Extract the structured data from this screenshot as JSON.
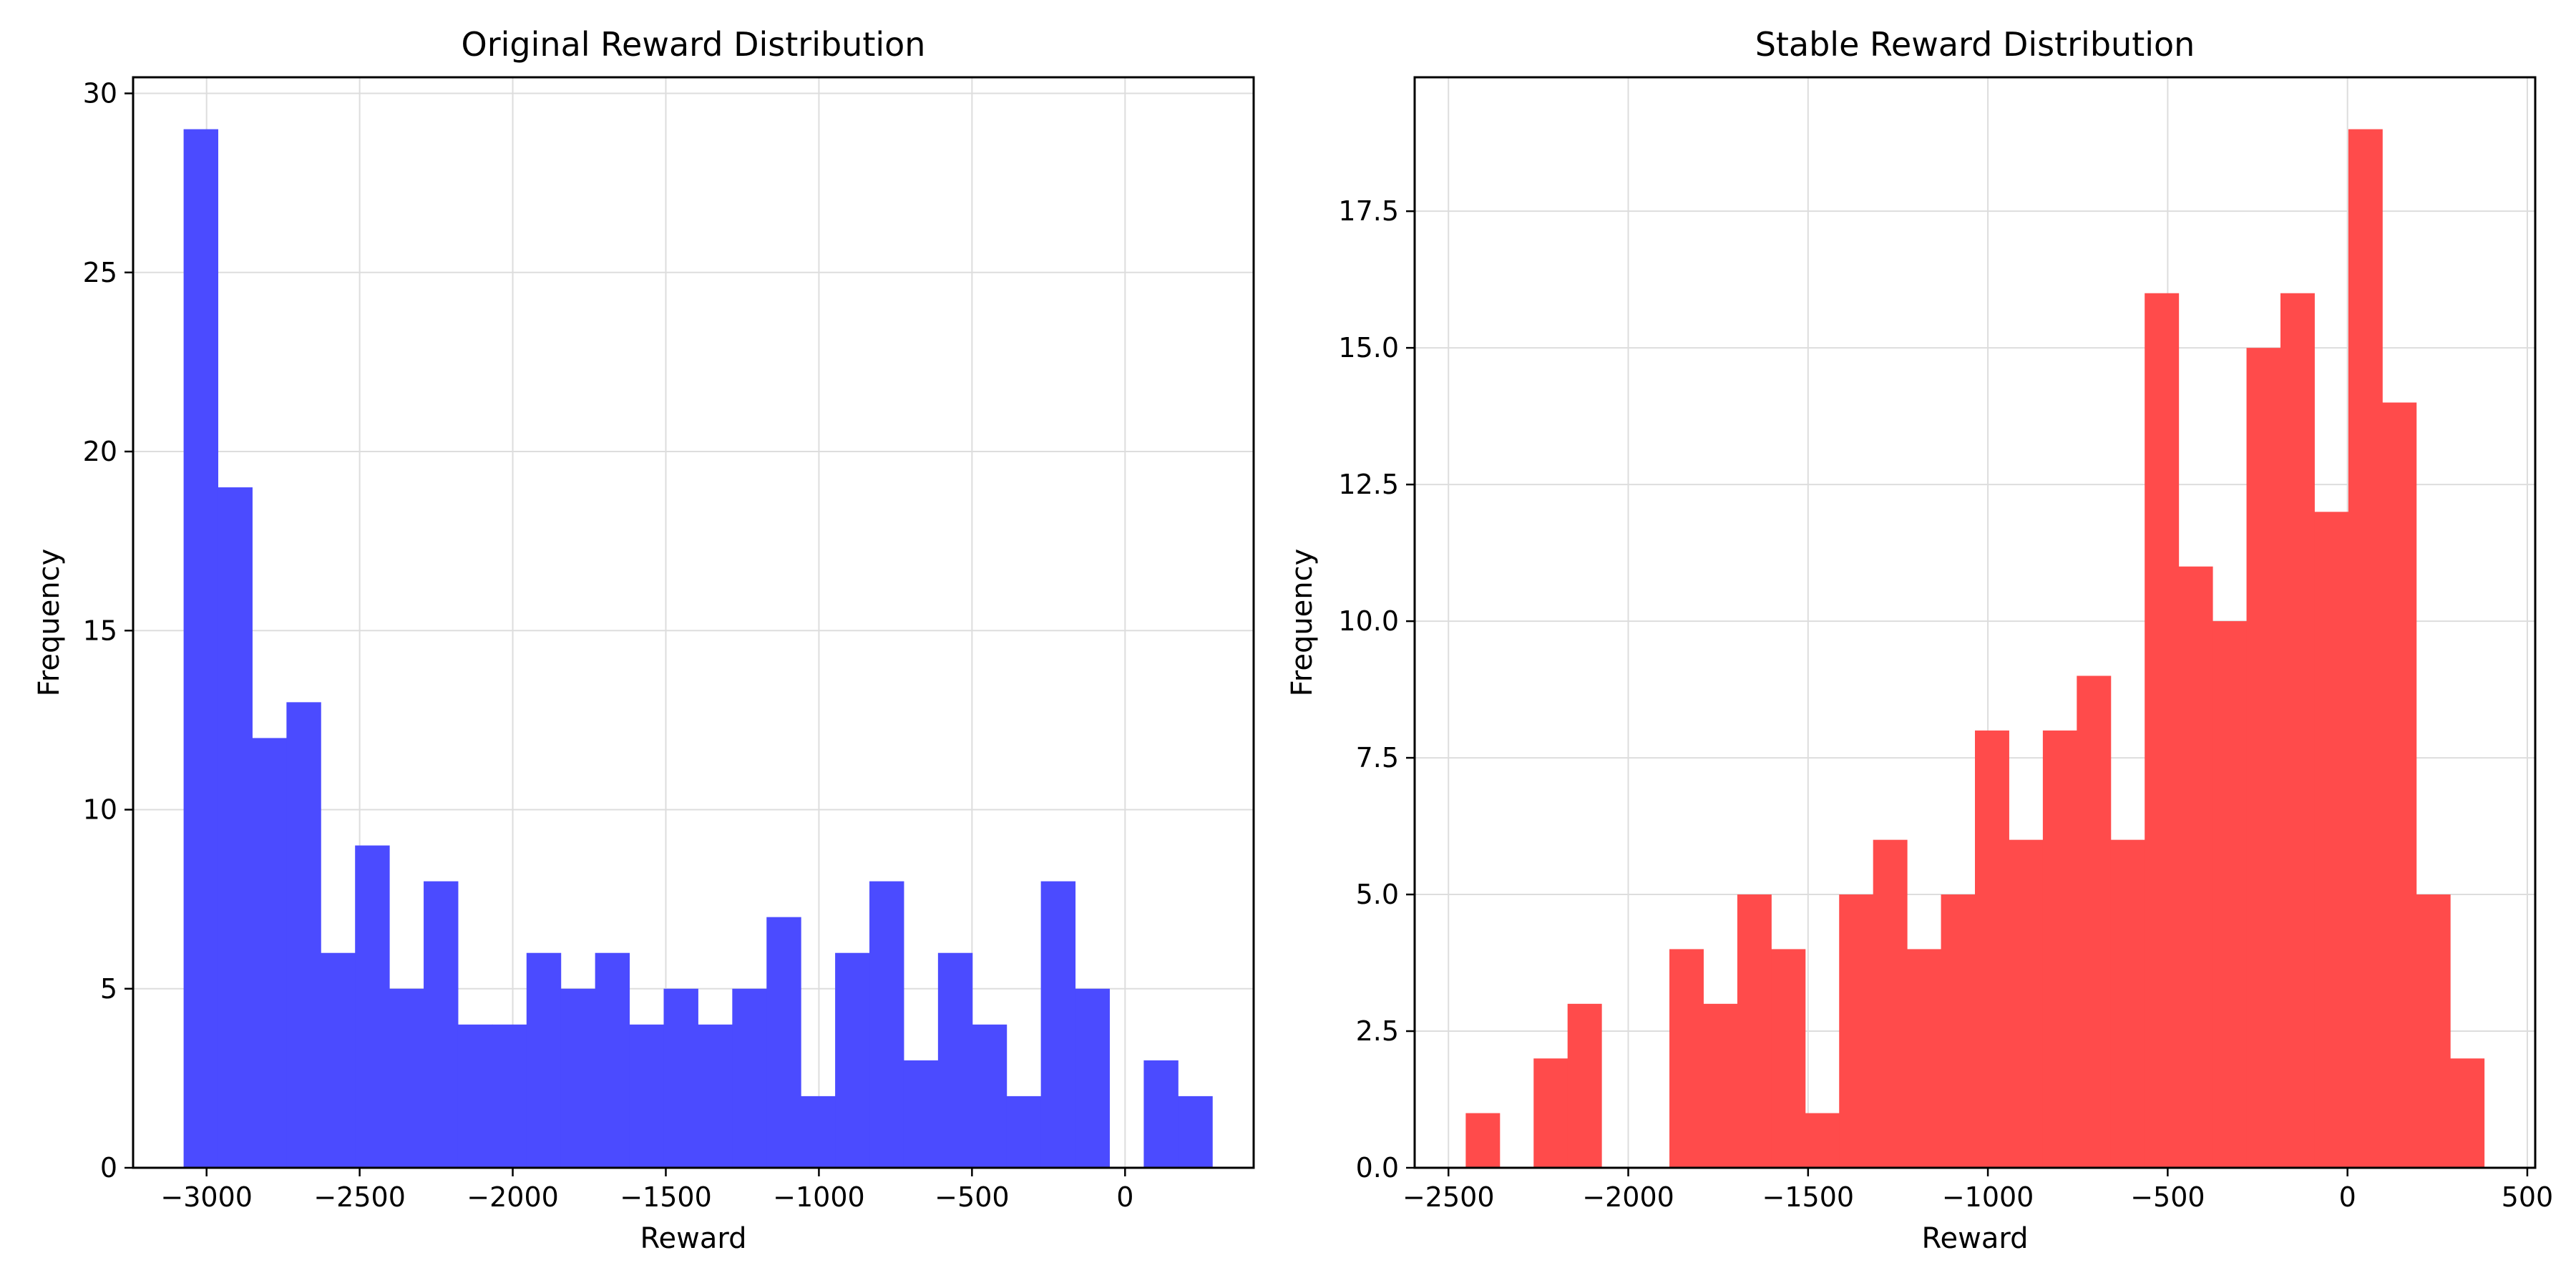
{
  "chart_data": [
    {
      "type": "bar",
      "title": "Original Reward Distribution",
      "xlabel": "Reward",
      "ylabel": "Frequency",
      "color": "#4b4bff",
      "xlim": [
        -3240,
        420
      ],
      "ylim": [
        0,
        30.45
      ],
      "grid": true,
      "xticks": [
        -3000,
        -2500,
        -2000,
        -1500,
        -1000,
        -500,
        0
      ],
      "xtick_labels": [
        "−3000",
        "−2500",
        "−2000",
        "−1500",
        "−1000",
        "−500",
        "0"
      ],
      "yticks": [
        0,
        5,
        10,
        15,
        20,
        25,
        30
      ],
      "ytick_labels": [
        "0",
        "5",
        "10",
        "15",
        "20",
        "25",
        "30"
      ],
      "bin_start": -3075,
      "bin_width": 112,
      "values": [
        29,
        19,
        12,
        13,
        6,
        9,
        5,
        8,
        4,
        4,
        6,
        5,
        6,
        4,
        5,
        4,
        5,
        7,
        2,
        6,
        8,
        3,
        6,
        4,
        2,
        8,
        5,
        0,
        3,
        2
      ]
    },
    {
      "type": "bar",
      "title": "Stable Reward Distribution",
      "xlabel": "Reward",
      "ylabel": "Frequency",
      "color": "#ff4b4b",
      "xlim": [
        -2594,
        522
      ],
      "ylim": [
        0,
        19.95
      ],
      "grid": true,
      "xticks": [
        -2500,
        -2000,
        -1500,
        -1000,
        -500,
        0,
        500
      ],
      "xtick_labels": [
        "−2500",
        "−2000",
        "−1500",
        "−1000",
        "−500",
        "0",
        "500"
      ],
      "yticks": [
        0,
        2.5,
        5,
        7.5,
        10,
        12.5,
        15,
        17.5
      ],
      "ytick_labels": [
        "0.0",
        "2.5",
        "5.0",
        "7.5",
        "10.0",
        "12.5",
        "15.0",
        "17.5"
      ],
      "bin_start": -2452,
      "bin_width": 94.4,
      "values": [
        1,
        0,
        2,
        3,
        0,
        0,
        4,
        3,
        5,
        4,
        1,
        5,
        6,
        4,
        5,
        8,
        6,
        8,
        9,
        6,
        16,
        11,
        10,
        15,
        16,
        12,
        19,
        14,
        5,
        2
      ]
    }
  ]
}
